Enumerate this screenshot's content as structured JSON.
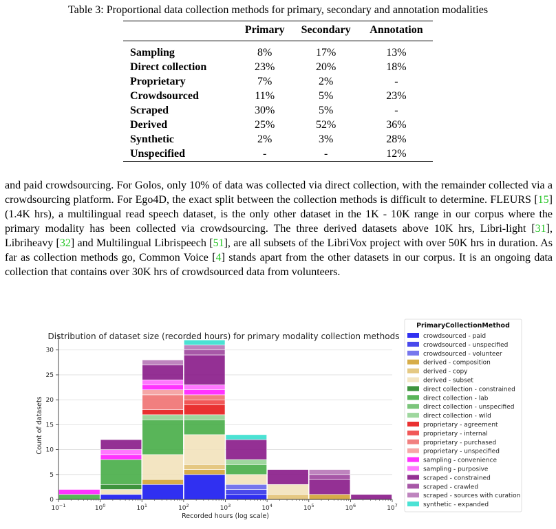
{
  "table": {
    "caption": "Table 3: Proportional data collection methods for primary, secondary and annotation modalities",
    "columns": [
      "",
      "Primary",
      "Secondary",
      "Annotation"
    ],
    "rows": [
      {
        "label": "Sampling",
        "primary": "8%",
        "secondary": "17%",
        "annotation": "13%"
      },
      {
        "label": "Direct collection",
        "primary": "23%",
        "secondary": "20%",
        "annotation": "18%"
      },
      {
        "label": "Proprietary",
        "primary": "7%",
        "secondary": "2%",
        "annotation": "-"
      },
      {
        "label": "Crowdsourced",
        "primary": "11%",
        "secondary": "5%",
        "annotation": "23%"
      },
      {
        "label": "Scraped",
        "primary": "30%",
        "secondary": "5%",
        "annotation": "-"
      },
      {
        "label": "Derived",
        "primary": "25%",
        "secondary": "52%",
        "annotation": "36%"
      },
      {
        "label": "Synthetic",
        "primary": "2%",
        "secondary": "3%",
        "annotation": "28%"
      },
      {
        "label": "Unspecified",
        "primary": "-",
        "secondary": "-",
        "annotation": "12%"
      }
    ]
  },
  "paragraph": [
    {
      "t": "and paid crowdsourcing. For Golos, only 10% of data was collected via direct collection, with the remainder collected via a crowdsourcing platform. For Ego4D, the exact split between the collection methods is difficult to determine. FLEURS "
    },
    {
      "t": "[",
      "r": false
    },
    {
      "t": "15",
      "r": true
    },
    {
      "t": "] (1.4K hrs), a multilingual read speech dataset, is the only other dataset in the 1K - 10K range in our corpus where the primary modality has been collected via crowdsourcing. The three derived datasets above 10K hrs, Libri-light ["
    },
    {
      "t": "31",
      "r": true
    },
    {
      "t": "], Libriheavy ["
    },
    {
      "t": "32",
      "r": true
    },
    {
      "t": "] and Multilingual Librispeech ["
    },
    {
      "t": "51",
      "r": true
    },
    {
      "t": "], are all subsets of the LibriVox project with over 50K hrs in duration. As far as collection methods go, Common Voice ["
    },
    {
      "t": "4",
      "r": true
    },
    {
      "t": "] stands apart from the other datasets in our corpus. It is an ongoing data collection that contains over 30K hrs of crowdsourced data from volunteers."
    }
  ],
  "chart_data": {
    "type": "bar",
    "stacked": true,
    "title": "Distribution of dataset size (recorded hours) for primary modality collection methods",
    "xlabel": "Recorded hours (log scale)",
    "ylabel": "Count of datasets",
    "x_scale": "log",
    "xlim": [
      0.1,
      10000000
    ],
    "ylim": [
      0,
      33
    ],
    "x_ticks": [
      {
        "base": "10",
        "exp": "−1"
      },
      {
        "base": "10",
        "exp": "0"
      },
      {
        "base": "10",
        "exp": "1"
      },
      {
        "base": "10",
        "exp": "2"
      },
      {
        "base": "10",
        "exp": "3"
      },
      {
        "base": "10",
        "exp": "4"
      },
      {
        "base": "10",
        "exp": "5"
      },
      {
        "base": "10",
        "exp": "6"
      },
      {
        "base": "10",
        "exp": "7"
      }
    ],
    "y_ticks": [
      "0",
      "5",
      "10",
      "15",
      "20",
      "25",
      "30"
    ],
    "grid": "horizontal",
    "legend_title": "PrimaryCollectionMethod",
    "legend_position": "right",
    "bins": [
      [
        0.1,
        1
      ],
      [
        1,
        10
      ],
      [
        10,
        100
      ],
      [
        100,
        1000
      ],
      [
        1000,
        10000
      ],
      [
        10000,
        100000
      ],
      [
        100000,
        1000000
      ],
      [
        1000000,
        10000000
      ]
    ],
    "series": [
      {
        "name": "crowdsourced - paid",
        "color": "#1f1ff0",
        "values": [
          0,
          1,
          3,
          5,
          1,
          0,
          0,
          0
        ]
      },
      {
        "name": "crowdsourced - unspecified",
        "color": "#3a3aea",
        "values": [
          0,
          0,
          0,
          0,
          1,
          0,
          0,
          0
        ]
      },
      {
        "name": "crowdsourced - volunteer",
        "color": "#6b6bec",
        "values": [
          0,
          0,
          0,
          0,
          1,
          0,
          0,
          0
        ]
      },
      {
        "name": "derived - composition",
        "color": "#d4a63a",
        "values": [
          0,
          0,
          1,
          1,
          0,
          0,
          1,
          0
        ]
      },
      {
        "name": "derived - copy",
        "color": "#e3c478",
        "values": [
          0,
          0,
          0,
          1,
          0,
          1,
          0,
          0
        ]
      },
      {
        "name": "derived - subset",
        "color": "#f2e3bd",
        "values": [
          0,
          1,
          5,
          6,
          2,
          2,
          0,
          0
        ]
      },
      {
        "name": "direct collection - constrained",
        "color": "#2e8b2e",
        "values": [
          0,
          1,
          0,
          0,
          0,
          0,
          0,
          0
        ]
      },
      {
        "name": "direct collection - lab",
        "color": "#4caf4c",
        "values": [
          1,
          5,
          7,
          3,
          2,
          0,
          0,
          0
        ]
      },
      {
        "name": "direct collection - unspecified",
        "color": "#70c070",
        "values": [
          0,
          0,
          0,
          0,
          0,
          0,
          0,
          0
        ]
      },
      {
        "name": "direct collection - wild",
        "color": "#96d496",
        "values": [
          0,
          0,
          1,
          1,
          1,
          0,
          0,
          0
        ]
      },
      {
        "name": "proprietary - agreement",
        "color": "#e82020",
        "values": [
          0,
          0,
          1,
          2,
          0,
          0,
          0,
          0
        ]
      },
      {
        "name": "proprietary - internal",
        "color": "#f04a4a",
        "values": [
          0,
          0,
          0,
          1,
          0,
          0,
          0,
          0
        ]
      },
      {
        "name": "proprietary - purchased",
        "color": "#f07575",
        "values": [
          0,
          0,
          3,
          1,
          0,
          0,
          0,
          0
        ]
      },
      {
        "name": "proprietary - unspecified",
        "color": "#f5a0a0",
        "values": [
          0,
          0,
          1,
          0,
          0,
          0,
          0,
          0
        ]
      },
      {
        "name": "sampling - convenience",
        "color": "#ff22ff",
        "values": [
          1,
          1,
          1,
          1,
          0,
          0,
          0,
          0
        ]
      },
      {
        "name": "sampling - purposive",
        "color": "#ff6cff",
        "values": [
          0,
          1,
          1,
          1,
          0,
          0,
          0,
          0
        ]
      },
      {
        "name": "scraped - constrained",
        "color": "#8b1f8b",
        "values": [
          0,
          2,
          3,
          6,
          4,
          3,
          3,
          1
        ]
      },
      {
        "name": "scraped - crawled",
        "color": "#a04aa0",
        "values": [
          0,
          0,
          0,
          1,
          0,
          0,
          1,
          0
        ]
      },
      {
        "name": "scraped - sources with curation",
        "color": "#b97ab9",
        "values": [
          0,
          0,
          1,
          1,
          0,
          0,
          1,
          0
        ]
      },
      {
        "name": "synthetic - expanded",
        "color": "#3ce0d0",
        "values": [
          0,
          0,
          0,
          1,
          1,
          0,
          0,
          0
        ]
      }
    ]
  }
}
